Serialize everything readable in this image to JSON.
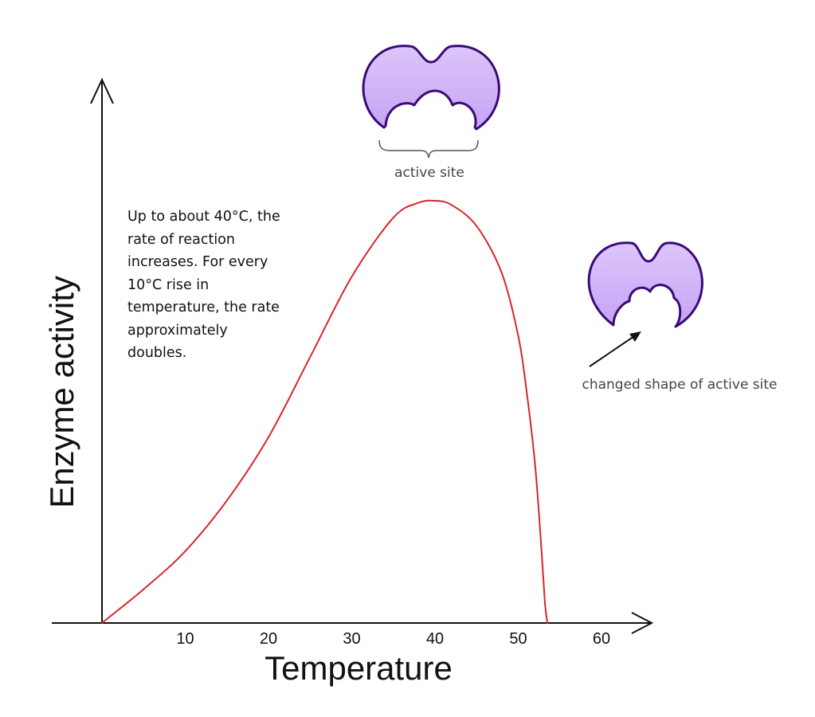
{
  "chart_data": {
    "type": "line",
    "xlabel": "Temperature",
    "ylabel": "Enzyme activity",
    "x_ticks": [
      10,
      20,
      30,
      40,
      50,
      60
    ],
    "xlim": [
      0,
      65
    ],
    "ylim": [
      0,
      1
    ],
    "grid": false,
    "series": [
      {
        "color": "#d7262e",
        "x": [
          0,
          5,
          10,
          15,
          20,
          25,
          30,
          35,
          38,
          40,
          42,
          45,
          48,
          50,
          51,
          52,
          52.7,
          53.2,
          53.5
        ],
        "values": [
          0.0,
          0.08,
          0.17,
          0.29,
          0.44,
          0.63,
          0.82,
          0.96,
          0.995,
          1.0,
          0.99,
          0.94,
          0.83,
          0.68,
          0.55,
          0.38,
          0.2,
          0.05,
          0.0
        ]
      }
    ],
    "annotations": [
      "Up to about 40°C, the rate of reaction increases. For every 10°C rise in temperature, the rate approximately doubles."
    ]
  },
  "diagrams": {
    "normal_label": "active site",
    "denatured_label": "changed shape of active site",
    "enzyme_color": "#c5a3f5",
    "enzyme_outline": "#3a0a78"
  }
}
